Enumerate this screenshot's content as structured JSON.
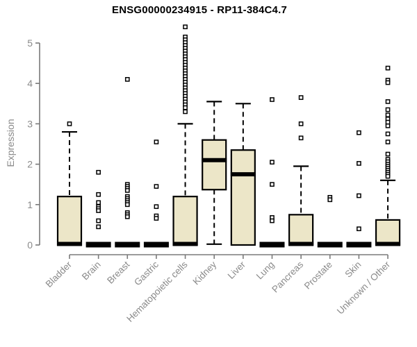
{
  "chart_data": {
    "type": "boxplot",
    "title": "ENSG00000234915 - RP11-384C4.7",
    "ylabel": "Expression",
    "xlabel": "",
    "ylim": [
      0,
      5.5
    ],
    "yticks": [
      0,
      1,
      2,
      3,
      4,
      5
    ],
    "grid": false,
    "legend": "none",
    "box_fill": "#ECE6C8",
    "box_stroke": "#000000",
    "axis_color": "#7a7a7a",
    "label_color": "#8a8a8a",
    "title_color": "#000000",
    "categories": [
      "Bladder",
      "Brain",
      "Breast",
      "Gastric",
      "Hematopoietic cells",
      "Kidney",
      "Liver",
      "Lung",
      "Pancreas",
      "Prostate",
      "Skin",
      "Unknown / Other"
    ],
    "series": [
      {
        "label": "Bladder",
        "q1": 0,
        "median": 0,
        "q3": 1.2,
        "whisker_low": 0,
        "whisker_high": 2.8,
        "outliers": [
          3.0
        ]
      },
      {
        "label": "Brain",
        "q1": 0,
        "median": 0,
        "q3": 0,
        "whisker_low": 0,
        "whisker_high": 0,
        "outliers": [
          1.8,
          1.25,
          1.05,
          0.95,
          0.9,
          0.85,
          0.6,
          0.45
        ]
      },
      {
        "label": "Breast",
        "q1": 0,
        "median": 0,
        "q3": 0,
        "whisker_low": 0,
        "whisker_high": 0,
        "outliers": [
          4.1,
          1.5,
          1.45,
          1.4,
          1.35,
          1.2,
          1.15,
          1.1,
          1.05,
          1.0,
          0.8,
          0.75,
          0.7
        ]
      },
      {
        "label": "Gastric",
        "q1": 0,
        "median": 0,
        "q3": 0,
        "whisker_low": 0,
        "whisker_high": 0,
        "outliers": [
          2.55,
          1.45,
          0.95,
          0.72,
          0.66
        ]
      },
      {
        "label": "Hematopoietic cells",
        "q1": 0,
        "median": 0,
        "q3": 1.2,
        "whisker_low": 0,
        "whisker_high": 3.0,
        "outliers": [
          5.4,
          5.15,
          5.08,
          5.01,
          4.94,
          4.87,
          4.8,
          4.73,
          4.66,
          4.59,
          4.52,
          4.45,
          4.38,
          4.31,
          4.24,
          4.17,
          4.1,
          4.03,
          3.96,
          3.89,
          3.82,
          3.75,
          3.68,
          3.61,
          3.54,
          3.47,
          3.4,
          3.3
        ]
      },
      {
        "label": "Kidney",
        "q1": 1.37,
        "median": 2.1,
        "q3": 2.6,
        "whisker_low": 0.02,
        "whisker_high": 3.55,
        "outliers": []
      },
      {
        "label": "Liver",
        "q1": 0,
        "median": 1.75,
        "q3": 2.35,
        "whisker_low": 0,
        "whisker_high": 3.5,
        "outliers": []
      },
      {
        "label": "Lung",
        "q1": 0,
        "median": 0,
        "q3": 0,
        "whisker_low": 0,
        "whisker_high": 0,
        "outliers": [
          3.6,
          2.05,
          1.5,
          0.68,
          0.6
        ]
      },
      {
        "label": "Pancreas",
        "q1": 0,
        "median": 0,
        "q3": 0.75,
        "whisker_low": 0,
        "whisker_high": 1.95,
        "outliers": [
          3.65,
          3.0,
          2.65
        ]
      },
      {
        "label": "Prostate",
        "q1": 0,
        "median": 0,
        "q3": 0,
        "whisker_low": 0,
        "whisker_high": 0,
        "outliers": [
          1.18,
          1.12
        ]
      },
      {
        "label": "Skin",
        "q1": 0,
        "median": 0,
        "q3": 0,
        "whisker_low": 0,
        "whisker_high": 0,
        "outliers": [
          2.78,
          2.02,
          1.22,
          0.4
        ]
      },
      {
        "label": "Unknown / Other",
        "q1": 0,
        "median": 0,
        "q3": 0.62,
        "whisker_low": 0,
        "whisker_high": 1.6,
        "outliers": [
          4.38,
          4.08,
          4.02,
          3.55,
          3.35,
          3.22,
          3.12,
          3.04,
          2.95,
          2.75,
          2.55,
          2.25,
          2.12,
          2.06,
          2.0,
          1.95,
          1.9,
          1.85,
          1.8,
          1.75,
          1.7
        ]
      }
    ]
  }
}
